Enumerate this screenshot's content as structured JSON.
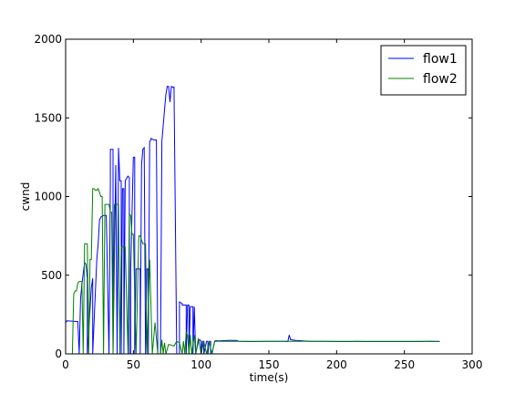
{
  "chart_data": {
    "type": "line",
    "title": "",
    "xlabel": "time(s)",
    "ylabel": "cwnd",
    "xlim": [
      0,
      300
    ],
    "ylim": [
      0,
      2000
    ],
    "xticks": [
      0,
      50,
      100,
      150,
      200,
      250,
      300
    ],
    "yticks": [
      0,
      500,
      1000,
      1500,
      2000
    ],
    "grid": false,
    "legend_position": "top-right",
    "series": [
      {
        "name": "flow1",
        "color": "#0000ff",
        "x": [
          0,
          1,
          9,
          10,
          11,
          12,
          14,
          15,
          16,
          16,
          19,
          20,
          20,
          23,
          24,
          25,
          26,
          28,
          30,
          32,
          33,
          33,
          35,
          35,
          37,
          37,
          38,
          39,
          39,
          40,
          41,
          41,
          42,
          43,
          43,
          44,
          46,
          47,
          47,
          48,
          48,
          50,
          51,
          51,
          52,
          52,
          54,
          55,
          55,
          56,
          57,
          58,
          59,
          59,
          60,
          61,
          61,
          62,
          63,
          63,
          65,
          66,
          67,
          68,
          70,
          71,
          73,
          74,
          75,
          76,
          77,
          78,
          78,
          80,
          80,
          82,
          84,
          84,
          86,
          86,
          89,
          89,
          90,
          91,
          91,
          92,
          94,
          94,
          95,
          96,
          96,
          98,
          99,
          100,
          100,
          101,
          102,
          102,
          104,
          105,
          105,
          106,
          107,
          107,
          108,
          110,
          111,
          112,
          120,
          125,
          126,
          128,
          135,
          140,
          150,
          160,
          164,
          165,
          166,
          170,
          180,
          190,
          200,
          210,
          215,
          220,
          230,
          240,
          250,
          260,
          270,
          276
        ],
        "y": [
          200,
          210,
          205,
          0,
          350,
          440,
          580,
          570,
          480,
          0,
          420,
          480,
          0,
          600,
          700,
          850,
          870,
          880,
          880,
          0,
          1100,
          1300,
          1300,
          0,
          1200,
          1200,
          0,
          1250,
          1310,
          1100,
          1100,
          0,
          1050,
          1050,
          0,
          1100,
          1130,
          1120,
          0,
          0,
          540,
          1250,
          1250,
          0,
          540,
          540,
          540,
          540,
          0,
          1200,
          1300,
          1310,
          0,
          0,
          540,
          540,
          0,
          1350,
          1360,
          1370,
          1360,
          1360,
          1360,
          0,
          0,
          1350,
          1550,
          1650,
          1700,
          1700,
          1600,
          1700,
          1700,
          1690,
          1700,
          0,
          0,
          330,
          320,
          310,
          310,
          0,
          310,
          310,
          0,
          300,
          300,
          0,
          300,
          0,
          0,
          80,
          90,
          80,
          0,
          80,
          80,
          0,
          80,
          80,
          0,
          80,
          80,
          0,
          0,
          80,
          85,
          82,
          85,
          85,
          85,
          80,
          78,
          78,
          80,
          80,
          78,
          120,
          90,
          85,
          80,
          80,
          78,
          78,
          80,
          78,
          78,
          78,
          78,
          78,
          80,
          78
        ]
      },
      {
        "name": "flow2",
        "color": "#008000",
        "x": [
          0,
          5,
          6,
          7,
          8,
          9,
          10,
          12,
          13,
          14,
          15,
          16,
          17,
          18,
          19,
          20,
          21,
          22,
          23,
          24,
          26,
          27,
          28,
          29,
          30,
          31,
          32,
          33,
          34,
          35,
          36,
          37,
          38,
          39,
          40,
          41,
          42,
          43,
          44,
          46,
          47,
          48,
          49,
          50,
          52,
          54,
          55,
          57,
          59,
          60,
          62,
          64,
          66,
          68,
          70,
          71,
          72,
          73,
          74,
          76,
          80,
          82,
          84,
          86,
          87,
          88,
          89,
          90,
          91,
          92,
          93,
          95,
          96,
          98,
          100,
          102,
          104,
          106,
          108,
          110,
          112,
          114,
          116,
          118,
          120,
          122,
          124,
          126,
          128,
          130,
          135,
          140,
          145,
          150,
          155,
          160,
          165,
          170,
          175,
          180,
          190,
          200,
          210,
          215,
          220,
          225,
          230,
          235,
          240,
          245,
          250,
          255,
          260,
          265,
          270,
          276
        ],
        "y": [
          0,
          0,
          380,
          400,
          400,
          450,
          460,
          460,
          0,
          700,
          700,
          700,
          0,
          600,
          600,
          1050,
          1050,
          1040,
          1040,
          1050,
          1000,
          1000,
          0,
          950,
          950,
          950,
          950,
          900,
          900,
          0,
          950,
          950,
          950,
          950,
          0,
          680,
          680,
          680,
          680,
          0,
          890,
          880,
          760,
          760,
          0,
          750,
          750,
          700,
          700,
          0,
          600,
          0,
          200,
          0,
          0,
          90,
          0,
          70,
          0,
          60,
          50,
          80,
          70,
          0,
          80,
          0,
          140,
          120,
          0,
          120,
          0,
          120,
          0,
          100,
          0,
          80,
          0,
          80,
          0,
          80,
          80,
          80,
          80,
          80,
          80,
          80,
          80,
          80,
          80,
          80,
          80,
          80,
          80,
          80,
          80,
          80,
          80,
          80,
          80,
          80,
          80,
          80,
          80,
          80,
          80,
          80,
          80,
          80,
          80,
          80,
          80,
          80,
          80,
          80,
          80,
          80
        ]
      }
    ]
  }
}
